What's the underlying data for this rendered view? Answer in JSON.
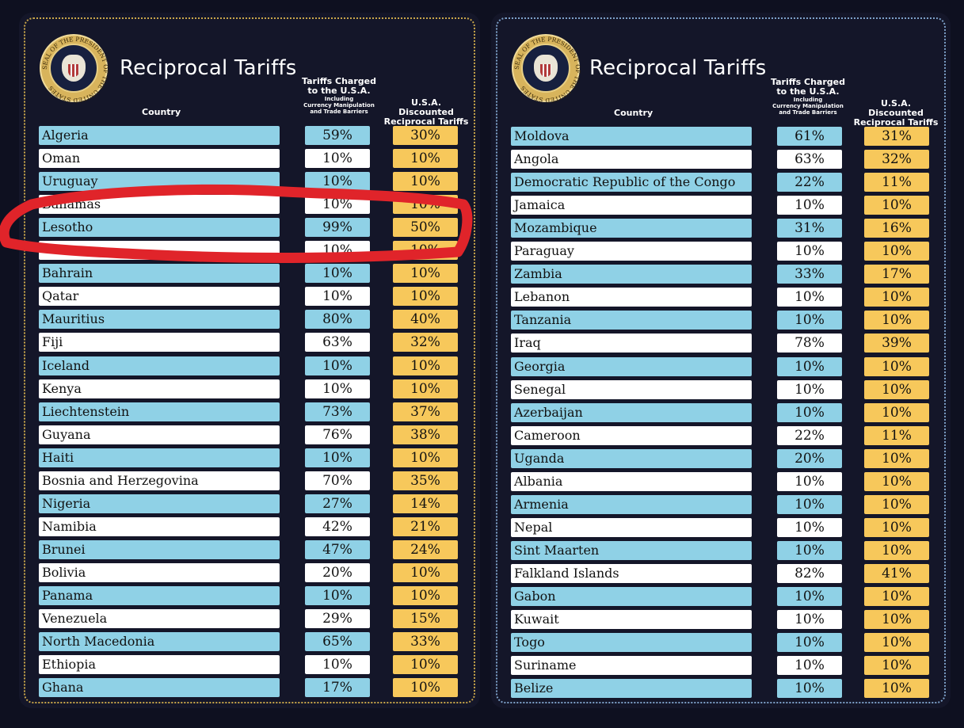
{
  "title": "Reciprocal Tariffs",
  "headers": {
    "country": "Country",
    "charged_line1": "Tariffs Charged",
    "charged_line2": "to the U.S.A.",
    "charged_sub1": "Including",
    "charged_sub2": "Currency Manipulation",
    "charged_sub3": "and Trade Barriers",
    "disc_line1": "U.S.A. Discounted",
    "disc_line2": "Reciprocal Tariffs"
  },
  "seal_text": "SEAL OF THE PRESIDENT OF THE UNITED STATES",
  "left_rows": [
    {
      "country": "Algeria",
      "charged": "59%",
      "discounted": "30%"
    },
    {
      "country": "Oman",
      "charged": "10%",
      "discounted": "10%"
    },
    {
      "country": "Uruguay",
      "charged": "10%",
      "discounted": "10%"
    },
    {
      "country": "Bahamas",
      "charged": "10%",
      "discounted": "10%"
    },
    {
      "country": "Lesotho",
      "charged": "99%",
      "discounted": "50%"
    },
    {
      "country": "",
      "charged": "10%",
      "discounted": "10%"
    },
    {
      "country": "Bahrain",
      "charged": "10%",
      "discounted": "10%"
    },
    {
      "country": "Qatar",
      "charged": "10%",
      "discounted": "10%"
    },
    {
      "country": "Mauritius",
      "charged": "80%",
      "discounted": "40%"
    },
    {
      "country": "Fiji",
      "charged": "63%",
      "discounted": "32%"
    },
    {
      "country": "Iceland",
      "charged": "10%",
      "discounted": "10%"
    },
    {
      "country": "Kenya",
      "charged": "10%",
      "discounted": "10%"
    },
    {
      "country": "Liechtenstein",
      "charged": "73%",
      "discounted": "37%"
    },
    {
      "country": "Guyana",
      "charged": "76%",
      "discounted": "38%"
    },
    {
      "country": "Haiti",
      "charged": "10%",
      "discounted": "10%"
    },
    {
      "country": "Bosnia and Herzegovina",
      "charged": "70%",
      "discounted": "35%"
    },
    {
      "country": "Nigeria",
      "charged": "27%",
      "discounted": "14%"
    },
    {
      "country": "Namibia",
      "charged": "42%",
      "discounted": "21%"
    },
    {
      "country": "Brunei",
      "charged": "47%",
      "discounted": "24%"
    },
    {
      "country": "Bolivia",
      "charged": "20%",
      "discounted": "10%"
    },
    {
      "country": "Panama",
      "charged": "10%",
      "discounted": "10%"
    },
    {
      "country": "Venezuela",
      "charged": "29%",
      "discounted": "15%"
    },
    {
      "country": "North Macedonia",
      "charged": "65%",
      "discounted": "33%"
    },
    {
      "country": "Ethiopia",
      "charged": "10%",
      "discounted": "10%"
    },
    {
      "country": "Ghana",
      "charged": "17%",
      "discounted": "10%"
    }
  ],
  "right_rows": [
    {
      "country": "Moldova",
      "charged": "61%",
      "discounted": "31%"
    },
    {
      "country": "Angola",
      "charged": "63%",
      "discounted": "32%"
    },
    {
      "country": "Democratic Republic of the Congo",
      "charged": "22%",
      "discounted": "11%"
    },
    {
      "country": "Jamaica",
      "charged": "10%",
      "discounted": "10%"
    },
    {
      "country": "Mozambique",
      "charged": "31%",
      "discounted": "16%"
    },
    {
      "country": "Paraguay",
      "charged": "10%",
      "discounted": "10%"
    },
    {
      "country": "Zambia",
      "charged": "33%",
      "discounted": "17%"
    },
    {
      "country": "Lebanon",
      "charged": "10%",
      "discounted": "10%"
    },
    {
      "country": "Tanzania",
      "charged": "10%",
      "discounted": "10%"
    },
    {
      "country": "Iraq",
      "charged": "78%",
      "discounted": "39%"
    },
    {
      "country": "Georgia",
      "charged": "10%",
      "discounted": "10%"
    },
    {
      "country": "Senegal",
      "charged": "10%",
      "discounted": "10%"
    },
    {
      "country": "Azerbaijan",
      "charged": "10%",
      "discounted": "10%"
    },
    {
      "country": "Cameroon",
      "charged": "22%",
      "discounted": "11%"
    },
    {
      "country": "Uganda",
      "charged": "20%",
      "discounted": "10%"
    },
    {
      "country": "Albania",
      "charged": "10%",
      "discounted": "10%"
    },
    {
      "country": "Armenia",
      "charged": "10%",
      "discounted": "10%"
    },
    {
      "country": "Nepal",
      "charged": "10%",
      "discounted": "10%"
    },
    {
      "country": "Sint Maarten",
      "charged": "10%",
      "discounted": "10%"
    },
    {
      "country": "Falkland Islands",
      "charged": "82%",
      "discounted": "41%"
    },
    {
      "country": "Gabon",
      "charged": "10%",
      "discounted": "10%"
    },
    {
      "country": "Kuwait",
      "charged": "10%",
      "discounted": "10%"
    },
    {
      "country": "Togo",
      "charged": "10%",
      "discounted": "10%"
    },
    {
      "country": "Suriname",
      "charged": "10%",
      "discounted": "10%"
    },
    {
      "country": "Belize",
      "charged": "10%",
      "discounted": "10%"
    }
  ],
  "colors": {
    "background": "#0e1020",
    "row_blue": "#8fd1e6",
    "row_white": "#ffffff",
    "discount_yellow": "#f7c85b",
    "annotation_red": "#e0242a"
  }
}
